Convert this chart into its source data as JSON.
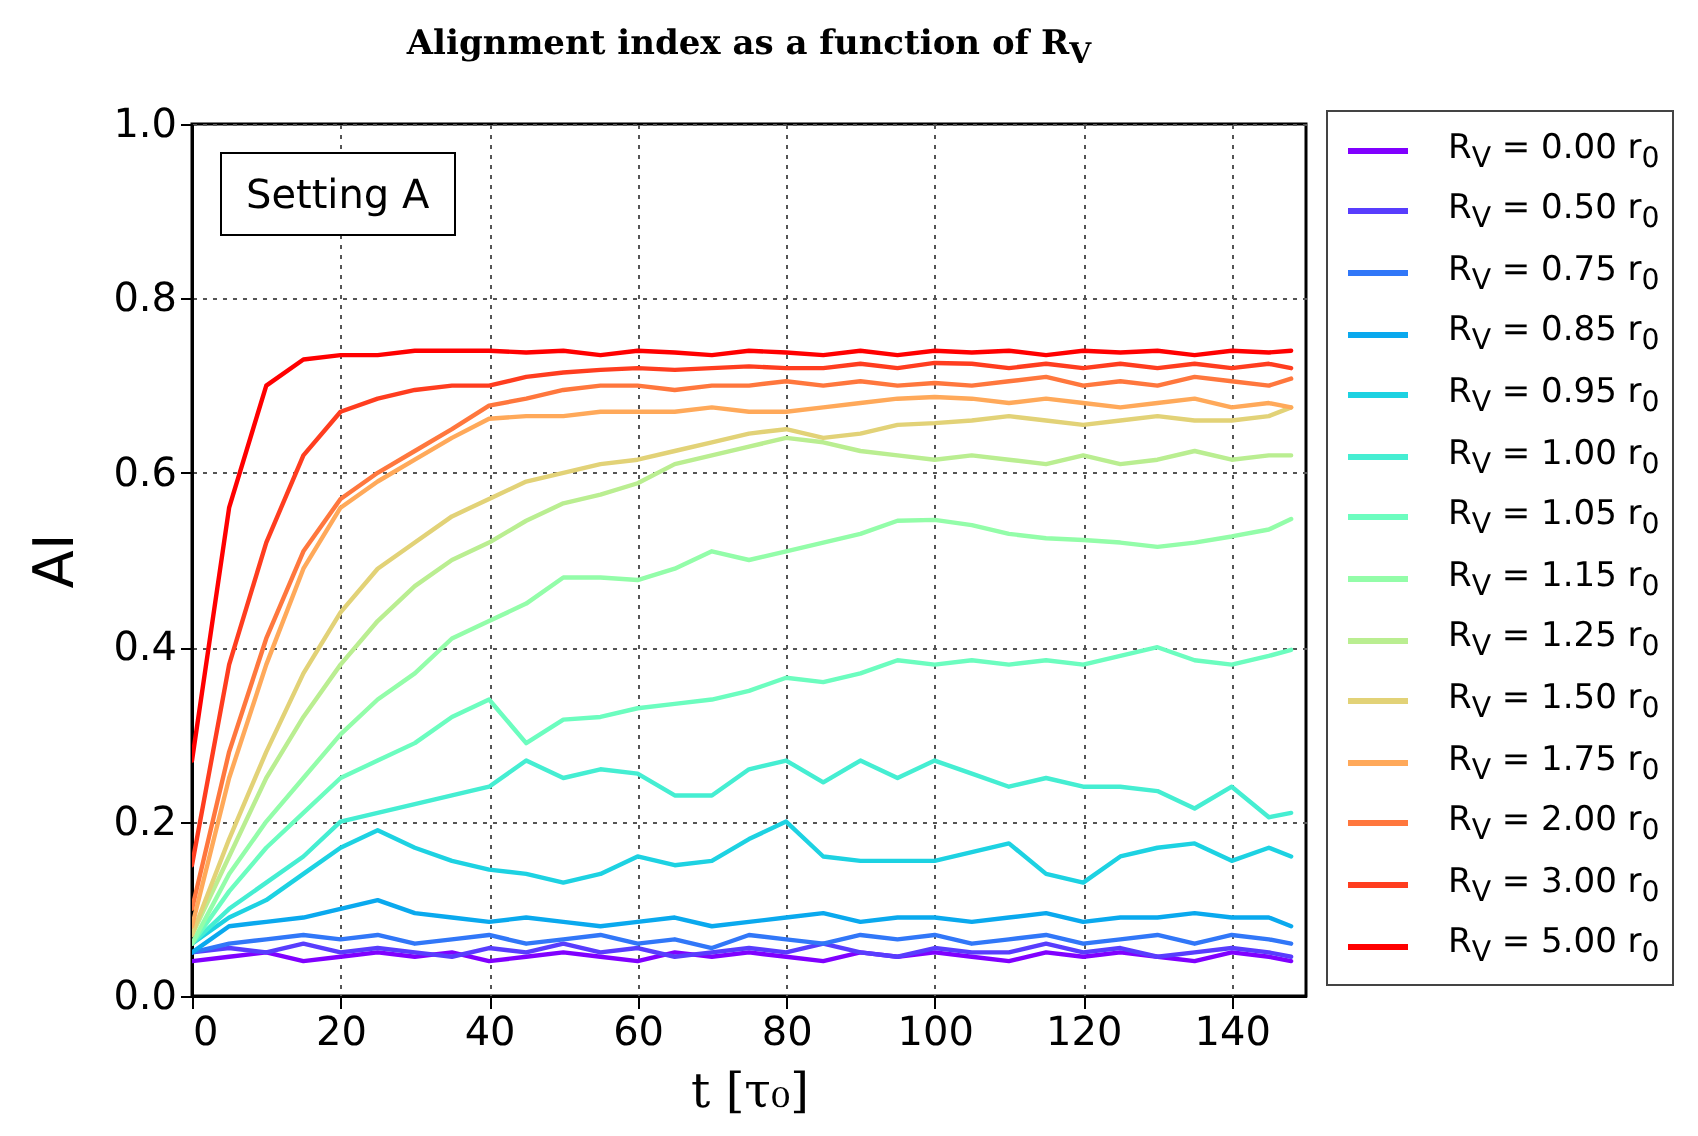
{
  "chart_data": {
    "type": "line",
    "title": "Alignment index as a function of R$_{V}$",
    "xlabel": "t   [τ₀]",
    "ylabel": "AI",
    "annotations": [
      "Setting A"
    ],
    "x": [
      0,
      5,
      10,
      15,
      20,
      25,
      30,
      35,
      40,
      45,
      50,
      55,
      60,
      65,
      70,
      75,
      80,
      85,
      90,
      95,
      100,
      105,
      110,
      115,
      120,
      125,
      130,
      135,
      140,
      145,
      148
    ],
    "xlim": [
      0,
      150
    ],
    "xticks": [
      0,
      20,
      40,
      60,
      80,
      100,
      120,
      140
    ],
    "ylim": [
      0,
      1
    ],
    "yticks": [
      {
        "value": 0,
        "label": "0.0"
      },
      {
        "value": 0.2,
        "label": "0.2"
      },
      {
        "value": 0.4,
        "label": "0.4"
      },
      {
        "value": 0.6,
        "label": "0.6"
      },
      {
        "value": 0.8,
        "label": "0.8"
      },
      {
        "value": 1,
        "label": "1.0"
      }
    ],
    "grid": true,
    "legend": "right",
    "series": [
      {
        "name": "R$_{V}$ = 0.00 r$_{0}$",
        "color": "#8000ff",
        "values": [
          0.04,
          0.045,
          0.05,
          0.04,
          0.045,
          0.05,
          0.045,
          0.05,
          0.04,
          0.045,
          0.05,
          0.045,
          0.04,
          0.05,
          0.045,
          0.05,
          0.045,
          0.04,
          0.05,
          0.045,
          0.05,
          0.045,
          0.04,
          0.05,
          0.045,
          0.05,
          0.045,
          0.04,
          0.05,
          0.045,
          0.04
        ]
      },
      {
        "name": "R$_{V}$ = 0.50 r$_{0}$",
        "color": "#583dfd",
        "values": [
          0.05,
          0.055,
          0.05,
          0.06,
          0.05,
          0.055,
          0.05,
          0.045,
          0.055,
          0.05,
          0.06,
          0.05,
          0.055,
          0.045,
          0.05,
          0.055,
          0.05,
          0.06,
          0.05,
          0.045,
          0.055,
          0.05,
          0.05,
          0.06,
          0.05,
          0.055,
          0.045,
          0.05,
          0.055,
          0.05,
          0.045
        ]
      },
      {
        "name": "R$_{V}$ = 0.75 r$_{0}$",
        "color": "#3177f8",
        "values": [
          0.05,
          0.06,
          0.065,
          0.07,
          0.065,
          0.07,
          0.06,
          0.065,
          0.07,
          0.06,
          0.065,
          0.07,
          0.06,
          0.065,
          0.055,
          0.07,
          0.065,
          0.06,
          0.07,
          0.065,
          0.07,
          0.06,
          0.065,
          0.07,
          0.06,
          0.065,
          0.07,
          0.06,
          0.07,
          0.065,
          0.06
        ]
      },
      {
        "name": "R$_{V}$ = 0.85 r$_{0}$",
        "color": "#0aa9ee",
        "values": [
          0.05,
          0.08,
          0.085,
          0.09,
          0.1,
          0.11,
          0.095,
          0.09,
          0.085,
          0.09,
          0.085,
          0.08,
          0.085,
          0.09,
          0.08,
          0.085,
          0.09,
          0.095,
          0.085,
          0.09,
          0.09,
          0.085,
          0.09,
          0.095,
          0.085,
          0.09,
          0.09,
          0.095,
          0.09,
          0.09,
          0.08
        ]
      },
      {
        "name": "R$_{V}$ = 0.95 r$_{0}$",
        "color": "#1dd2e2",
        "values": [
          0.06,
          0.09,
          0.11,
          0.14,
          0.17,
          0.19,
          0.17,
          0.155,
          0.145,
          0.14,
          0.13,
          0.14,
          0.16,
          0.15,
          0.155,
          0.18,
          0.2,
          0.16,
          0.155,
          0.155,
          0.155,
          0.165,
          0.175,
          0.14,
          0.13,
          0.16,
          0.17,
          0.175,
          0.155,
          0.17,
          0.16
        ]
      },
      {
        "name": "R$_{V}$ = 1.00 r$_{0}$",
        "color": "#45eed2",
        "values": [
          0.06,
          0.1,
          0.13,
          0.16,
          0.2,
          0.21,
          0.22,
          0.23,
          0.24,
          0.27,
          0.25,
          0.26,
          0.255,
          0.23,
          0.23,
          0.26,
          0.27,
          0.245,
          0.27,
          0.25,
          0.27,
          0.255,
          0.24,
          0.25,
          0.24,
          0.24,
          0.235,
          0.215,
          0.24,
          0.205,
          0.21
        ]
      },
      {
        "name": "R$_{V}$ = 1.05 r$_{0}$",
        "color": "#6cfdbf",
        "values": [
          0.06,
          0.12,
          0.17,
          0.21,
          0.25,
          0.27,
          0.29,
          0.32,
          0.34,
          0.29,
          0.317,
          0.32,
          0.33,
          0.335,
          0.34,
          0.35,
          0.365,
          0.36,
          0.37,
          0.385,
          0.38,
          0.385,
          0.38,
          0.385,
          0.38,
          0.39,
          0.4,
          0.385,
          0.38,
          0.39,
          0.397
        ]
      },
      {
        "name": "R$_{V}$ = 1.15 r$_{0}$",
        "color": "#93fda9",
        "values": [
          0.06,
          0.14,
          0.2,
          0.25,
          0.3,
          0.34,
          0.37,
          0.41,
          0.43,
          0.45,
          0.48,
          0.48,
          0.477,
          0.49,
          0.51,
          0.5,
          0.51,
          0.52,
          0.53,
          0.545,
          0.546,
          0.54,
          0.53,
          0.525,
          0.523,
          0.52,
          0.515,
          0.52,
          0.527,
          0.535,
          0.547
        ]
      },
      {
        "name": "R$_{V}$ = 1.25 r$_{0}$",
        "color": "#baee91",
        "values": [
          0.07,
          0.16,
          0.25,
          0.32,
          0.38,
          0.43,
          0.47,
          0.5,
          0.52,
          0.545,
          0.565,
          0.575,
          0.588,
          0.61,
          0.62,
          0.63,
          0.64,
          0.635,
          0.625,
          0.62,
          0.615,
          0.62,
          0.615,
          0.61,
          0.62,
          0.61,
          0.615,
          0.625,
          0.615,
          0.62,
          0.62
        ]
      },
      {
        "name": "R$_{V}$ = 1.50 r$_{0}$",
        "color": "#e2d277",
        "values": [
          0.07,
          0.18,
          0.28,
          0.37,
          0.44,
          0.49,
          0.52,
          0.55,
          0.57,
          0.59,
          0.6,
          0.61,
          0.615,
          0.625,
          0.635,
          0.645,
          0.65,
          0.64,
          0.645,
          0.655,
          0.657,
          0.66,
          0.665,
          0.66,
          0.655,
          0.66,
          0.665,
          0.66,
          0.66,
          0.665,
          0.675
        ]
      },
      {
        "name": "R$_{V}$ = 1.75 r$_{0}$",
        "color": "#ffa95a",
        "values": [
          0.08,
          0.25,
          0.38,
          0.49,
          0.56,
          0.59,
          0.615,
          0.64,
          0.662,
          0.665,
          0.665,
          0.67,
          0.67,
          0.67,
          0.675,
          0.67,
          0.67,
          0.675,
          0.68,
          0.685,
          0.687,
          0.685,
          0.68,
          0.685,
          0.68,
          0.675,
          0.68,
          0.685,
          0.675,
          0.68,
          0.675
        ]
      },
      {
        "name": "R$_{V}$ = 2.00 r$_{0}$",
        "color": "#ff773d",
        "values": [
          0.1,
          0.28,
          0.41,
          0.51,
          0.57,
          0.6,
          0.625,
          0.65,
          0.677,
          0.685,
          0.695,
          0.7,
          0.7,
          0.695,
          0.7,
          0.7,
          0.705,
          0.7,
          0.705,
          0.7,
          0.703,
          0.7,
          0.705,
          0.71,
          0.7,
          0.705,
          0.7,
          0.71,
          0.705,
          0.7,
          0.708
        ]
      },
      {
        "name": "R$_{V}$ = 3.00 r$_{0}$",
        "color": "#ff3d1f",
        "values": [
          0.15,
          0.38,
          0.52,
          0.62,
          0.67,
          0.685,
          0.695,
          0.7,
          0.7,
          0.71,
          0.715,
          0.718,
          0.72,
          0.718,
          0.72,
          0.722,
          0.72,
          0.72,
          0.725,
          0.72,
          0.726,
          0.725,
          0.72,
          0.725,
          0.72,
          0.725,
          0.72,
          0.725,
          0.72,
          0.725,
          0.72
        ]
      },
      {
        "name": "R$_{V}$ = 5.00 r$_{0}$",
        "color": "#ff0000",
        "values": [
          0.27,
          0.56,
          0.7,
          0.73,
          0.735,
          0.735,
          0.74,
          0.74,
          0.74,
          0.738,
          0.74,
          0.735,
          0.74,
          0.738,
          0.735,
          0.74,
          0.738,
          0.735,
          0.74,
          0.735,
          0.74,
          0.738,
          0.74,
          0.735,
          0.74,
          0.738,
          0.74,
          0.735,
          0.74,
          0.738,
          0.74
        ]
      }
    ]
  }
}
